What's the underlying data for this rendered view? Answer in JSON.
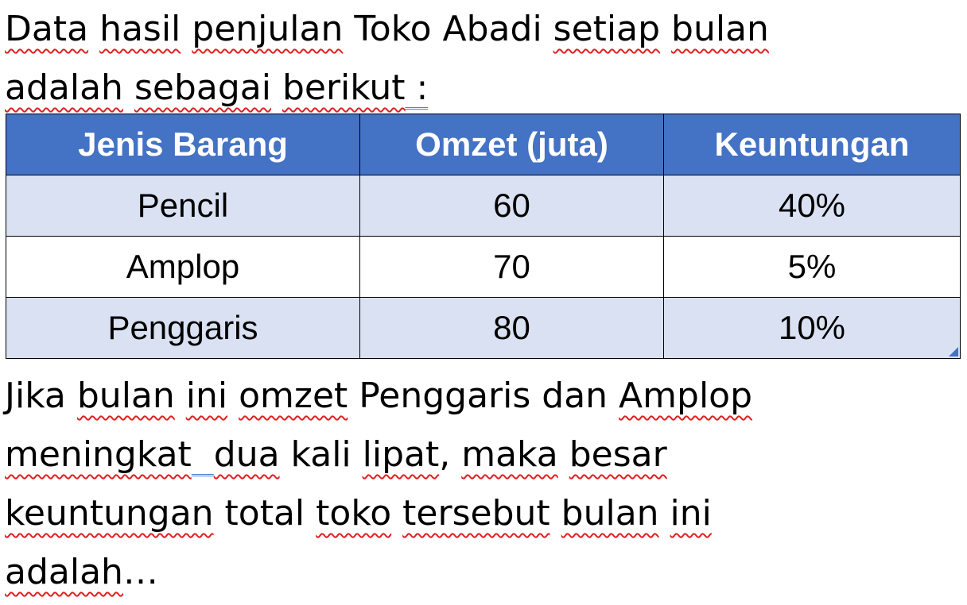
{
  "intro": {
    "words": [
      "Data",
      " ",
      "hasil",
      " ",
      "penjulan",
      " ",
      "Toko",
      " Abadi ",
      "setiap",
      " ",
      "bulan"
    ],
    "line2": [
      "adalah",
      " ",
      "sebagai",
      " ",
      "berikut",
      " ",
      ":"
    ]
  },
  "table": {
    "headers": [
      "Jenis Barang",
      "Omzet (juta)",
      "Keuntungan"
    ],
    "rows": [
      [
        "Pencil",
        "60",
        "40%"
      ],
      [
        "Amplop",
        "70",
        "5%"
      ],
      [
        "Penggaris",
        "80",
        "10%"
      ]
    ]
  },
  "question": {
    "line1": [
      "Jika",
      " ",
      "bulan",
      " ",
      "ini",
      " ",
      "omzet",
      " Penggaris dan ",
      "Amplop"
    ],
    "line2": [
      "meningkat",
      "  ",
      "dua",
      " kali ",
      "lipat",
      ", ",
      "maka",
      " ",
      "besar"
    ],
    "line3": [
      "keuntungan",
      " total ",
      "toko",
      " ",
      "tersebut",
      " ",
      "bulan",
      " ",
      "ini"
    ],
    "line4": [
      "adalah",
      "…"
    ]
  },
  "colors": {
    "header_bg": "#4472c4",
    "row_alt_bg": "#d9e1f2",
    "spellcheck_underline": "#e02020",
    "grammar_underline": "#4a7fd4"
  }
}
